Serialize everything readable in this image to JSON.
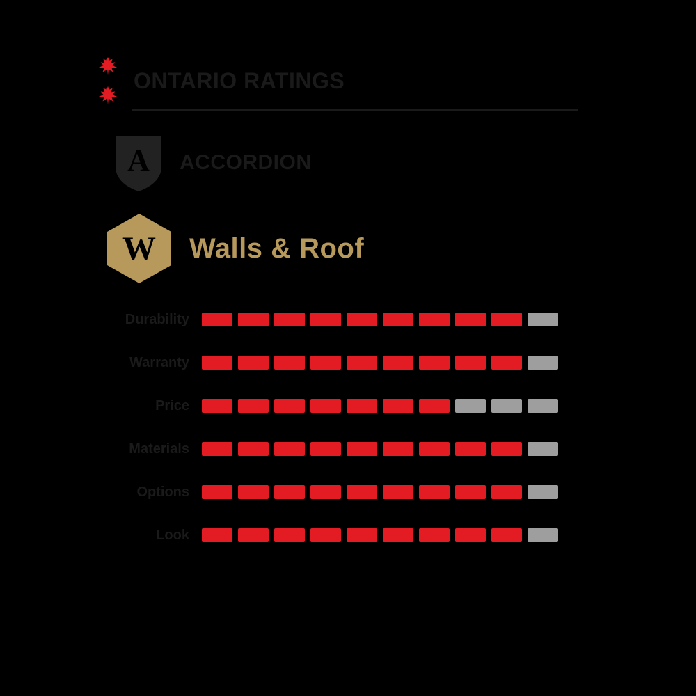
{
  "colors": {
    "background": "#000000",
    "accent_red": "#e31b23",
    "maple_red": "#e31b23",
    "text_dark": "#1a1a1a",
    "text_gold": "#b8995c",
    "hex_gold": "#b8995c",
    "shield_dark": "#222222",
    "underline": "#1a1a1a",
    "seg_empty": "#9e9e9e"
  },
  "header": {
    "title": "ONTARIO RATINGS",
    "title_color": "#1a1a1a",
    "title_fontsize": 32
  },
  "accordion": {
    "label": "ACCORDION",
    "label_color": "#1a1a1a",
    "label_fontsize": 30,
    "shield_letter": "A"
  },
  "panel": {
    "label": "Walls & Roof",
    "label_color": "#b8995c",
    "label_fontsize": 40,
    "hex_letter": "W"
  },
  "bars": {
    "segment_count": 10,
    "segment_width": 44,
    "segment_height": 20,
    "segment_gap": 8,
    "filled_color": "#e31b23",
    "empty_color": "#9e9e9e",
    "label_color": "#1a1a1a",
    "label_fontsize": 20,
    "rows": [
      {
        "label": "Durability",
        "value": 9
      },
      {
        "label": "Warranty",
        "value": 9
      },
      {
        "label": "Price",
        "value": 7
      },
      {
        "label": "Materials",
        "value": 9
      },
      {
        "label": "Options",
        "value": 9
      },
      {
        "label": "Look",
        "value": 9
      }
    ]
  }
}
